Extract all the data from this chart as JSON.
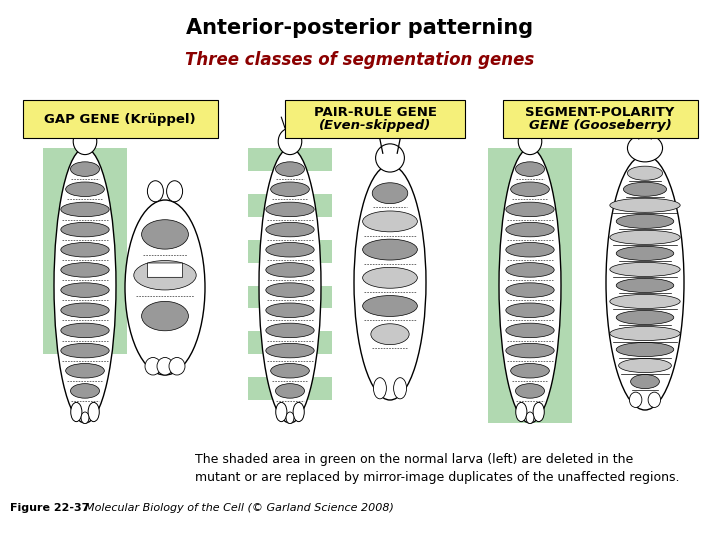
{
  "title": "Anterior-posterior patterning",
  "subtitle": "Three classes of segmentation genes",
  "title_color": "#000000",
  "subtitle_color": "#8B0000",
  "bg_color": "#ffffff",
  "label_bg_color": "#F5F07A",
  "green_color": "#90C990",
  "gray_color": "#999999",
  "dark_gray": "#666666",
  "light_gray": "#C8C8C8",
  "caption_line1": "The shaded area in green on the normal larva (left) are deleted in the",
  "caption_line2": "mutant or are replaced by mirror-image duplicates of the unaffected regions.",
  "figure_label": "Figure 22-37",
  "figure_ref": "  Molecular Biology of the Cell (© Garland Science 2008)"
}
